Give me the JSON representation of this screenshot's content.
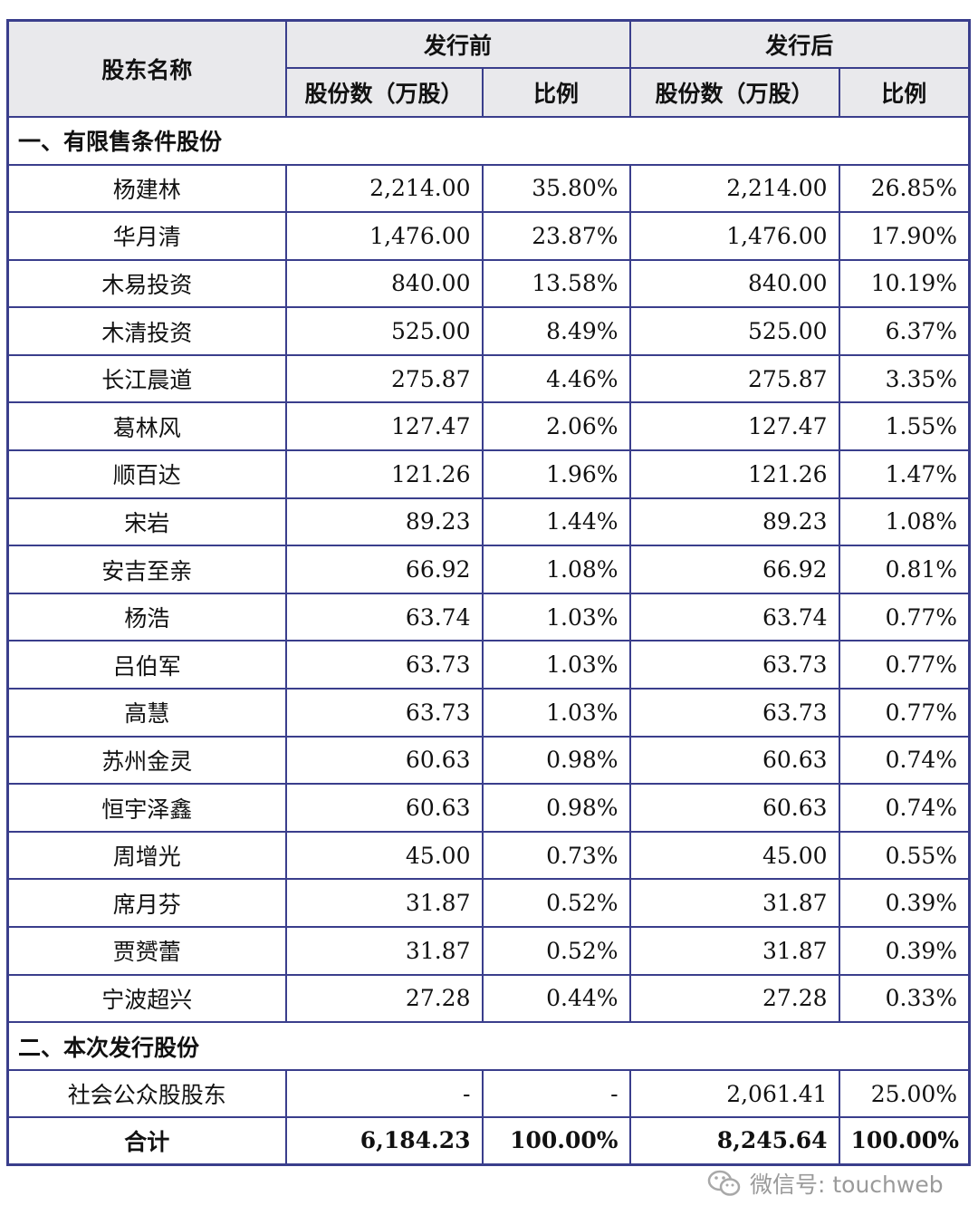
{
  "header": {
    "col_name": "股东名称",
    "group_before": "发行前",
    "group_after": "发行后",
    "shares_label": "股份数（万股）",
    "ratio_label": "比例"
  },
  "section1_title": "一、有限售条件股份",
  "restricted_rows": [
    {
      "name": "杨建林",
      "before_shares": "2,214.00",
      "before_ratio": "35.80%",
      "after_shares": "2,214.00",
      "after_ratio": "26.85%"
    },
    {
      "name": "华月清",
      "before_shares": "1,476.00",
      "before_ratio": "23.87%",
      "after_shares": "1,476.00",
      "after_ratio": "17.90%"
    },
    {
      "name": "木易投资",
      "before_shares": "840.00",
      "before_ratio": "13.58%",
      "after_shares": "840.00",
      "after_ratio": "10.19%"
    },
    {
      "name": "木清投资",
      "before_shares": "525.00",
      "before_ratio": "8.49%",
      "after_shares": "525.00",
      "after_ratio": "6.37%"
    },
    {
      "name": "长江晨道",
      "before_shares": "275.87",
      "before_ratio": "4.46%",
      "after_shares": "275.87",
      "after_ratio": "3.35%"
    },
    {
      "name": "葛林风",
      "before_shares": "127.47",
      "before_ratio": "2.06%",
      "after_shares": "127.47",
      "after_ratio": "1.55%"
    },
    {
      "name": "顺百达",
      "before_shares": "121.26",
      "before_ratio": "1.96%",
      "after_shares": "121.26",
      "after_ratio": "1.47%"
    },
    {
      "name": "宋岩",
      "before_shares": "89.23",
      "before_ratio": "1.44%",
      "after_shares": "89.23",
      "after_ratio": "1.08%"
    },
    {
      "name": "安吉至亲",
      "before_shares": "66.92",
      "before_ratio": "1.08%",
      "after_shares": "66.92",
      "after_ratio": "0.81%"
    },
    {
      "name": "杨浩",
      "before_shares": "63.74",
      "before_ratio": "1.03%",
      "after_shares": "63.74",
      "after_ratio": "0.77%"
    },
    {
      "name": "吕伯军",
      "before_shares": "63.73",
      "before_ratio": "1.03%",
      "after_shares": "63.73",
      "after_ratio": "0.77%"
    },
    {
      "name": "高慧",
      "before_shares": "63.73",
      "before_ratio": "1.03%",
      "after_shares": "63.73",
      "after_ratio": "0.77%"
    },
    {
      "name": "苏州金灵",
      "before_shares": "60.63",
      "before_ratio": "0.98%",
      "after_shares": "60.63",
      "after_ratio": "0.74%"
    },
    {
      "name": "恒宇泽鑫",
      "before_shares": "60.63",
      "before_ratio": "0.98%",
      "after_shares": "60.63",
      "after_ratio": "0.74%"
    },
    {
      "name": "周增光",
      "before_shares": "45.00",
      "before_ratio": "0.73%",
      "after_shares": "45.00",
      "after_ratio": "0.55%"
    },
    {
      "name": "席月芬",
      "before_shares": "31.87",
      "before_ratio": "0.52%",
      "after_shares": "31.87",
      "after_ratio": "0.39%"
    },
    {
      "name": "贾赟蕾",
      "before_shares": "31.87",
      "before_ratio": "0.52%",
      "after_shares": "31.87",
      "after_ratio": "0.39%"
    },
    {
      "name": "宁波超兴",
      "before_shares": "27.28",
      "before_ratio": "0.44%",
      "after_shares": "27.28",
      "after_ratio": "0.33%"
    }
  ],
  "section2_title": "二、本次发行股份",
  "public_row": {
    "name": "社会公众股股东",
    "before_shares": "-",
    "before_ratio": "-",
    "after_shares": "2,061.41",
    "after_ratio": "25.00%"
  },
  "total_row": {
    "name": "合计",
    "before_shares": "6,184.23",
    "before_ratio": "100.00%",
    "after_shares": "8,245.64",
    "after_ratio": "100.00%"
  },
  "watermark": {
    "text": "微信号: touchweb",
    "icon": "wechat-icon"
  }
}
